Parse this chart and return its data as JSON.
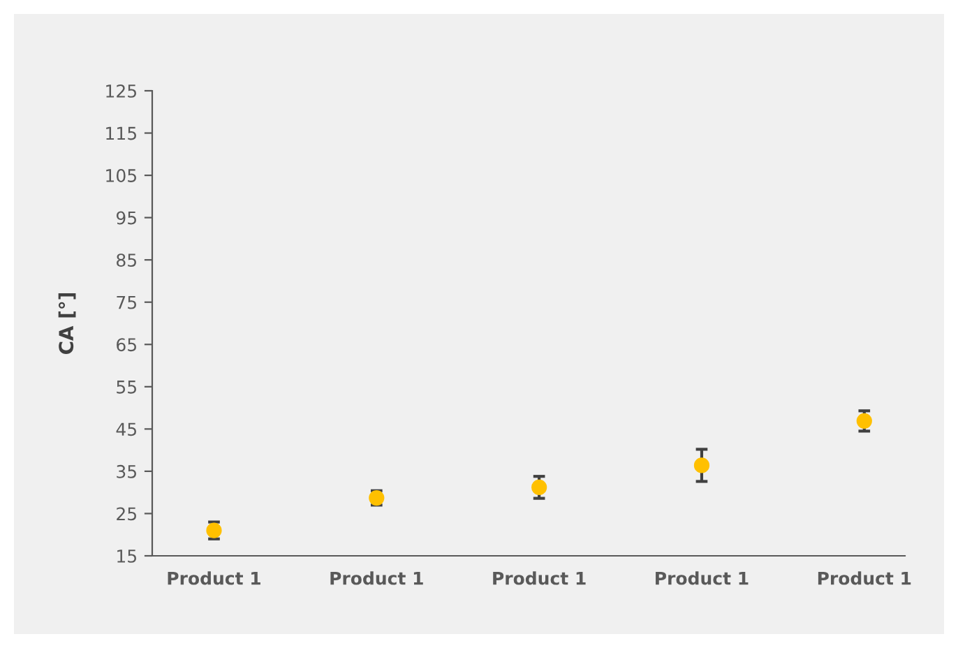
{
  "chart_data": {
    "type": "scatter",
    "ylabel": "CA [°]",
    "categories": [
      "Product 1",
      "Product 1",
      "Product 1",
      "Product 1",
      "Product 1"
    ],
    "series": [
      {
        "color": "#ffc000",
        "values": [
          21,
          28.7,
          31.2,
          36.4,
          46.9
        ],
        "errors": [
          2,
          1.7,
          2.6,
          3.8,
          2.4
        ]
      }
    ],
    "ylim": [
      15,
      125
    ],
    "yticks": [
      15,
      25,
      35,
      45,
      55,
      65,
      75,
      85,
      95,
      105,
      115,
      125
    ],
    "grid": false,
    "legend": false,
    "marker": "circle"
  }
}
